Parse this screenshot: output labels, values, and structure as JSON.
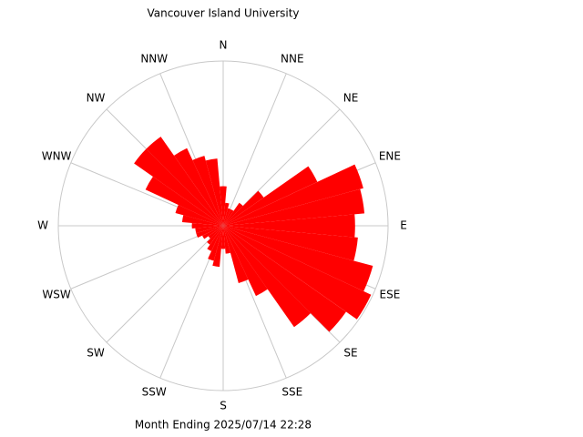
{
  "chart_data": {
    "type": "windrose",
    "title": "Vancouver Island University",
    "footer": "Month Ending 2025/07/14 22:28",
    "directions": [
      "N",
      "NNE",
      "NE",
      "ENE",
      "E",
      "ESE",
      "SE",
      "SSE",
      "S",
      "SSW",
      "SW",
      "WSW",
      "W",
      "WNW",
      "NW",
      "NNW"
    ],
    "x": [
      0,
      10,
      20,
      30,
      40,
      50,
      60,
      70,
      80,
      90,
      100,
      110,
      120,
      130,
      140,
      150,
      160,
      170,
      180,
      190,
      200,
      210,
      220,
      230,
      240,
      250,
      260,
      270,
      280,
      290,
      300,
      310,
      320,
      330,
      340,
      350
    ],
    "values": [
      24,
      14,
      11,
      11,
      17,
      30,
      63,
      88,
      86,
      80,
      82,
      94,
      99,
      91,
      75,
      47,
      36,
      17,
      14,
      25,
      22,
      17,
      14,
      11,
      14,
      17,
      17,
      19,
      25,
      30,
      52,
      66,
      66,
      52,
      44,
      41
    ],
    "rlim": [
      0,
      100
    ],
    "color": "#ff0000"
  }
}
